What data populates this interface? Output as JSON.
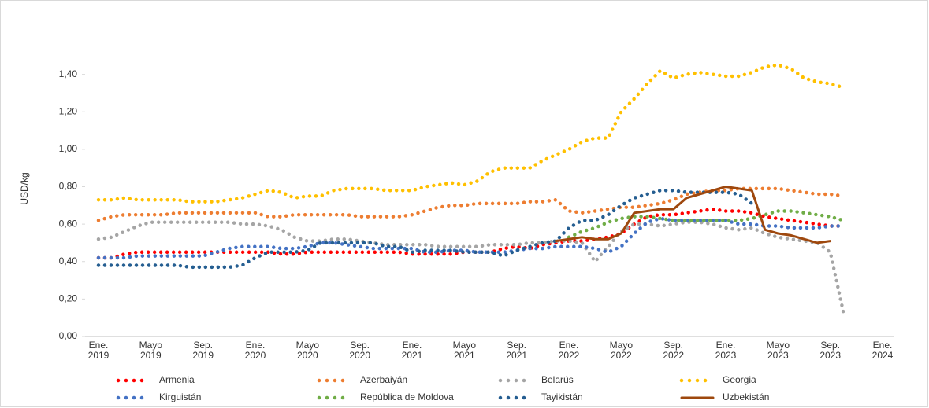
{
  "chart_data": {
    "type": "line",
    "y_label": "USD/kg",
    "categories": [
      "Ene. 2019",
      null,
      null,
      null,
      "Mayo 2019",
      null,
      null,
      null,
      "Sep. 2019",
      null,
      null,
      null,
      "Ene. 2020",
      null,
      null,
      null,
      "Mayo 2020",
      null,
      null,
      null,
      "Sep. 2020",
      null,
      null,
      null,
      "Ene. 2021",
      null,
      null,
      null,
      "Mayo 2021",
      null,
      null,
      null,
      "Sep. 2021",
      null,
      null,
      null,
      "Ene. 2022",
      null,
      null,
      null,
      "Mayo 2022",
      null,
      null,
      null,
      "Sep. 2022",
      null,
      null,
      null,
      "Ene. 2023",
      null,
      null,
      null,
      "Mayo 2023",
      null,
      null,
      null,
      "Sep. 2023",
      null,
      null,
      null,
      "Ene. 2024"
    ],
    "ylim": [
      0,
      1.6
    ],
    "yticks": [
      {
        "value": 0,
        "label": "0,00"
      },
      {
        "value": 0.2,
        "label": "0,20"
      },
      {
        "value": 0.4,
        "label": "0,40"
      },
      {
        "value": 0.6,
        "label": "0,60"
      },
      {
        "value": 0.8,
        "label": "0,80"
      },
      {
        "value": 1.0,
        "label": "1,00"
      },
      {
        "value": 1.2,
        "label": "1,20"
      },
      {
        "value": 1.4,
        "label": "1,40"
      }
    ],
    "legend": "bottom",
    "series": [
      {
        "name": "Armenia",
        "color": "#ff0000",
        "line_style": "dotted",
        "values": [
          0.42,
          0.42,
          0.44,
          0.45,
          0.45,
          0.45,
          0.45,
          0.45,
          0.45,
          0.45,
          0.45,
          0.45,
          0.45,
          0.45,
          0.44,
          0.44,
          0.45,
          0.45,
          0.45,
          0.45,
          0.45,
          0.45,
          0.45,
          0.45,
          0.44,
          0.44,
          0.44,
          0.44,
          0.45,
          0.45,
          0.45,
          0.47,
          0.48,
          0.47,
          0.49,
          0.5,
          0.51,
          0.51,
          0.52,
          0.53,
          0.55,
          0.6,
          0.64,
          0.65,
          0.65,
          0.66,
          0.67,
          0.68,
          0.67,
          0.67,
          0.66,
          0.64,
          0.63,
          0.62,
          0.61,
          0.6,
          0.59,
          0.59,
          null,
          null,
          null
        ]
      },
      {
        "name": "Azerbaiyán",
        "color": "#ed7d31",
        "line_style": "dotted",
        "values": [
          0.62,
          0.64,
          0.65,
          0.65,
          0.65,
          0.65,
          0.66,
          0.66,
          0.66,
          0.66,
          0.66,
          0.66,
          0.66,
          0.64,
          0.64,
          0.65,
          0.65,
          0.65,
          0.65,
          0.65,
          0.64,
          0.64,
          0.64,
          0.64,
          0.65,
          0.67,
          0.69,
          0.7,
          0.7,
          0.71,
          0.71,
          0.71,
          0.71,
          0.72,
          0.72,
          0.73,
          0.67,
          0.66,
          0.67,
          0.68,
          0.69,
          0.69,
          0.7,
          0.71,
          0.73,
          0.76,
          0.77,
          0.78,
          0.78,
          0.79,
          0.79,
          0.79,
          0.79,
          0.78,
          0.77,
          0.76,
          0.76,
          0.75,
          null,
          null,
          null
        ]
      },
      {
        "name": "Belarús",
        "color": "#a5a5a5",
        "line_style": "dotted",
        "values": [
          0.52,
          0.53,
          0.56,
          0.59,
          0.61,
          0.61,
          0.61,
          0.61,
          0.61,
          0.61,
          0.61,
          0.6,
          0.6,
          0.59,
          0.57,
          0.53,
          0.51,
          0.51,
          0.52,
          0.52,
          0.51,
          0.5,
          0.49,
          0.49,
          0.49,
          0.49,
          0.48,
          0.48,
          0.48,
          0.48,
          0.49,
          0.49,
          0.49,
          0.5,
          0.5,
          0.51,
          0.51,
          0.5,
          0.4,
          0.48,
          0.56,
          0.6,
          0.6,
          0.59,
          0.6,
          0.61,
          0.61,
          0.6,
          0.58,
          0.57,
          0.58,
          0.55,
          0.53,
          0.52,
          0.51,
          0.5,
          0.45,
          0.13,
          null,
          null,
          null
        ]
      },
      {
        "name": "Georgia",
        "color": "#ffc000",
        "line_style": "dotted",
        "values": [
          0.73,
          0.73,
          0.74,
          0.73,
          0.73,
          0.73,
          0.73,
          0.72,
          0.72,
          0.72,
          0.73,
          0.74,
          0.76,
          0.78,
          0.77,
          0.74,
          0.75,
          0.75,
          0.78,
          0.79,
          0.79,
          0.79,
          0.78,
          0.78,
          0.78,
          0.8,
          0.81,
          0.82,
          0.81,
          0.83,
          0.88,
          0.9,
          0.9,
          0.9,
          0.94,
          0.97,
          1.0,
          1.04,
          1.06,
          1.06,
          1.2,
          1.27,
          1.35,
          1.42,
          1.38,
          1.4,
          1.41,
          1.4,
          1.39,
          1.39,
          1.41,
          1.44,
          1.45,
          1.43,
          1.38,
          1.36,
          1.35,
          1.33,
          null,
          null,
          null
        ]
      },
      {
        "name": "Kirguistán",
        "color": "#4472c4",
        "line_style": "dotted",
        "values": [
          0.42,
          0.42,
          0.42,
          0.43,
          0.43,
          0.43,
          0.43,
          0.43,
          0.43,
          0.45,
          0.47,
          0.48,
          0.48,
          0.48,
          0.47,
          0.47,
          0.48,
          0.5,
          0.5,
          0.49,
          0.48,
          0.47,
          0.47,
          0.47,
          0.47,
          0.45,
          0.45,
          0.46,
          0.46,
          0.45,
          0.45,
          0.45,
          0.46,
          0.47,
          0.47,
          0.48,
          0.48,
          0.48,
          0.47,
          0.45,
          0.48,
          0.55,
          0.61,
          0.63,
          0.62,
          0.62,
          0.62,
          0.62,
          0.62,
          0.6,
          0.6,
          0.59,
          0.59,
          0.58,
          0.58,
          0.58,
          0.59,
          0.59,
          null,
          null,
          null
        ]
      },
      {
        "name": "República de Moldova",
        "color": "#70ad47",
        "line_style": "dotted",
        "values": [
          null,
          null,
          null,
          null,
          null,
          null,
          null,
          null,
          null,
          null,
          null,
          null,
          null,
          null,
          null,
          null,
          null,
          null,
          null,
          null,
          null,
          null,
          null,
          null,
          null,
          null,
          null,
          null,
          null,
          null,
          null,
          null,
          null,
          null,
          null,
          null,
          0.53,
          0.56,
          0.58,
          0.61,
          0.63,
          0.64,
          0.64,
          0.63,
          0.62,
          0.62,
          0.62,
          0.62,
          0.62,
          0.62,
          0.63,
          0.65,
          0.67,
          0.67,
          0.66,
          0.65,
          0.64,
          0.62,
          null,
          null,
          null
        ]
      },
      {
        "name": "Tayikistán",
        "color": "#255e91",
        "line_style": "dotted",
        "values": [
          0.38,
          0.38,
          0.38,
          0.38,
          0.38,
          0.38,
          0.38,
          0.37,
          0.37,
          0.37,
          0.37,
          0.38,
          0.42,
          0.45,
          0.45,
          0.45,
          0.46,
          0.5,
          0.5,
          0.5,
          0.5,
          0.5,
          0.48,
          0.48,
          0.45,
          0.46,
          0.46,
          0.46,
          0.45,
          0.45,
          0.45,
          0.43,
          0.46,
          0.48,
          0.5,
          0.51,
          0.58,
          0.62,
          0.62,
          0.65,
          0.7,
          0.74,
          0.76,
          0.78,
          0.78,
          0.77,
          0.77,
          0.77,
          0.77,
          0.76,
          0.71,
          null,
          null,
          null,
          null,
          null,
          null,
          null,
          null,
          null,
          null
        ]
      },
      {
        "name": "Uzbekistán",
        "color": "#9e480e",
        "line_style": "solid",
        "values": [
          null,
          null,
          null,
          null,
          null,
          null,
          null,
          null,
          null,
          null,
          null,
          null,
          null,
          null,
          null,
          null,
          null,
          null,
          null,
          null,
          null,
          null,
          null,
          null,
          null,
          null,
          null,
          null,
          null,
          null,
          null,
          null,
          null,
          null,
          null,
          0.51,
          0.52,
          0.53,
          0.52,
          0.52,
          0.55,
          0.66,
          0.67,
          0.68,
          0.68,
          0.74,
          0.76,
          0.78,
          0.8,
          0.79,
          0.78,
          0.57,
          0.55,
          0.54,
          0.52,
          0.5,
          0.51,
          null,
          null,
          null,
          null
        ]
      }
    ]
  }
}
